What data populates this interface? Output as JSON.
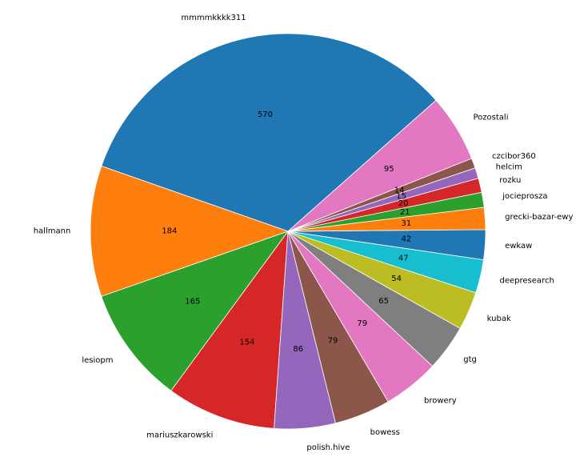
{
  "chart_data": {
    "type": "pie",
    "start_angle_deg": 41.5,
    "direction": "counterclockwise",
    "slices": [
      {
        "label": "mmmmkkkk311",
        "value": 570,
        "color": "#1f77b4"
      },
      {
        "label": "hallmann",
        "value": 184,
        "color": "#ff7f0e"
      },
      {
        "label": "lesiopm",
        "value": 165,
        "color": "#2ca02c"
      },
      {
        "label": "mariuszkarowski",
        "value": 154,
        "color": "#d62728"
      },
      {
        "label": "polish.hive",
        "value": 86,
        "color": "#9467bd"
      },
      {
        "label": "bowess",
        "value": 79,
        "color": "#8c564b"
      },
      {
        "label": "browery",
        "value": 79,
        "color": "#e377c2"
      },
      {
        "label": "gtg",
        "value": 65,
        "color": "#7f7f7f"
      },
      {
        "label": "kubak",
        "value": 54,
        "color": "#bcbd22"
      },
      {
        "label": "deepresearch",
        "value": 47,
        "color": "#17becf"
      },
      {
        "label": "ewkaw",
        "value": 42,
        "color": "#1f77b4"
      },
      {
        "label": "grecki-bazar-ewy",
        "value": 31,
        "color": "#ff7f0e"
      },
      {
        "label": "jocieprosza",
        "value": 21,
        "color": "#2ca02c"
      },
      {
        "label": "rozku",
        "value": 20,
        "color": "#d62728"
      },
      {
        "label": "helcim",
        "value": 15,
        "color": "#9467bd"
      },
      {
        "label": "czcibor360",
        "value": 14,
        "color": "#8c564b"
      },
      {
        "label": "Pozostali",
        "value": 95,
        "color": "#e377c2"
      }
    ]
  }
}
